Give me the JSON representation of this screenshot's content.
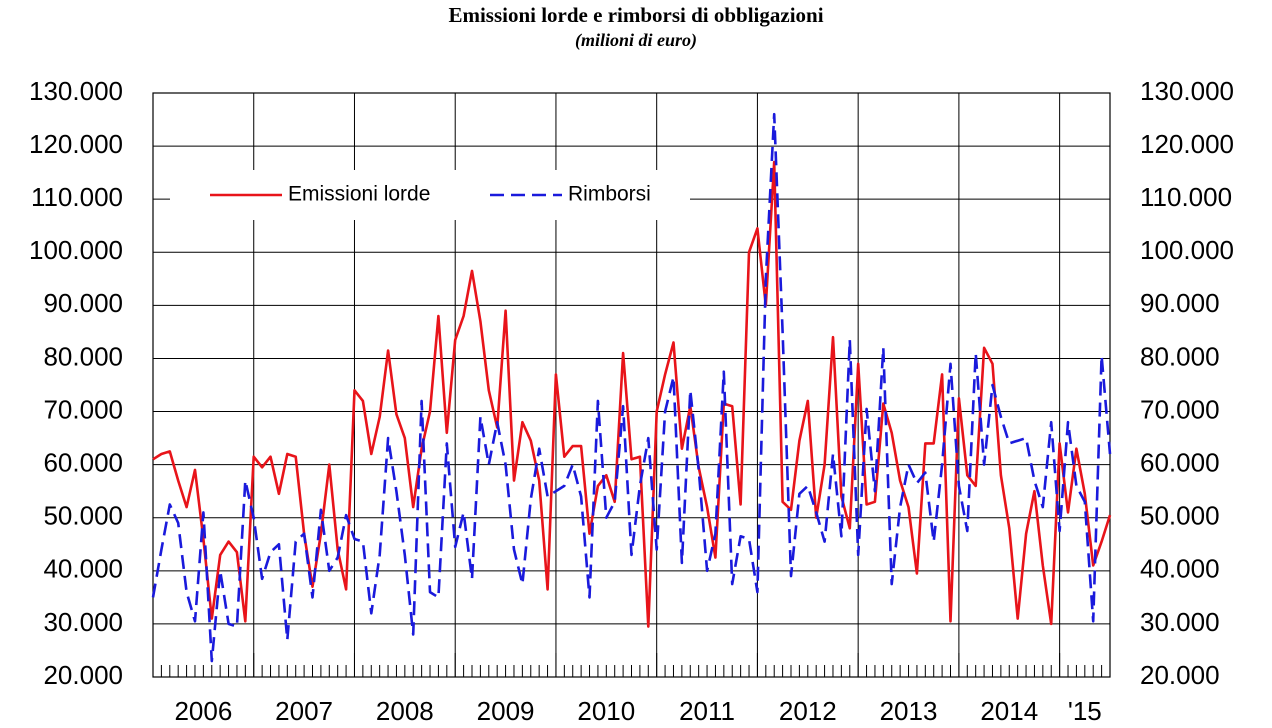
{
  "chart_data": {
    "type": "line",
    "title": "Emissioni lorde e rimborsi di obbligazioni",
    "subtitle": "(milioni di euro)",
    "categories": [
      "2006",
      null,
      null,
      null,
      null,
      null,
      null,
      null,
      null,
      null,
      null,
      null,
      "2007",
      null,
      null,
      null,
      null,
      null,
      null,
      null,
      null,
      null,
      null,
      null,
      "2008",
      null,
      null,
      null,
      null,
      null,
      null,
      null,
      null,
      null,
      null,
      null,
      "2009",
      null,
      null,
      null,
      null,
      null,
      null,
      null,
      null,
      null,
      null,
      null,
      "2010",
      null,
      null,
      null,
      null,
      null,
      null,
      null,
      null,
      null,
      null,
      null,
      "2011",
      null,
      null,
      null,
      null,
      null,
      null,
      null,
      null,
      null,
      null,
      null,
      "2012",
      null,
      null,
      null,
      null,
      null,
      null,
      null,
      null,
      null,
      null,
      null,
      "2013",
      null,
      null,
      null,
      null,
      null,
      null,
      null,
      null,
      null,
      null,
      null,
      "2014",
      null,
      null,
      null,
      null,
      null,
      null,
      null,
      null,
      null,
      null,
      null,
      "'15",
      null,
      null,
      null,
      null,
      null,
      null
    ],
    "series": [
      {
        "name": "Emissioni lorde",
        "color": "#e8141a",
        "dash": false,
        "values": [
          61000,
          62000,
          62500,
          57000,
          52000,
          59000,
          46000,
          31000,
          43000,
          45500,
          43500,
          30500,
          61500,
          59500,
          61500,
          54500,
          62000,
          61500,
          47000,
          37000,
          47000,
          60000,
          44000,
          36500,
          74000,
          72000,
          62000,
          69000,
          81500,
          69500,
          65000,
          52000,
          63000,
          70000,
          88000,
          66000,
          83500,
          88000,
          96500,
          87000,
          74000,
          67000,
          89000,
          57000,
          68000,
          64500,
          57000,
          36500,
          77000,
          61500,
          63500,
          63500,
          47000,
          56000,
          58000,
          53000,
          81000,
          61000,
          61500,
          29500,
          70000,
          77000,
          83000,
          63000,
          71000,
          59500,
          52000,
          42500,
          71500,
          71000,
          52500,
          100000,
          104500,
          90000,
          117000,
          53000,
          51500,
          64500,
          72000,
          50000,
          60000,
          84000,
          54000,
          48000,
          79000,
          52500,
          53000,
          71500,
          66000,
          57000,
          52000,
          39500,
          64000,
          64000,
          77000,
          30500,
          72500,
          58000,
          56000,
          82000,
          79000,
          58000,
          48000,
          31000,
          47000,
          55000,
          41000,
          30000,
          64000,
          51000,
          63000,
          54500,
          41000,
          45500,
          50500
        ]
      },
      {
        "name": "Rimborsi",
        "color": "#1a1adc",
        "dash": true,
        "values": [
          35000,
          44000,
          52500,
          49000,
          36000,
          30500,
          51000,
          23000,
          40000,
          30000,
          29500,
          57000,
          50000,
          38500,
          43500,
          45000,
          27000,
          45500,
          47000,
          35000,
          51500,
          40000,
          42500,
          50500,
          46000,
          45500,
          32000,
          43000,
          65000,
          55000,
          43000,
          28000,
          72000,
          36000,
          35000,
          64000,
          44500,
          51000,
          38500,
          69000,
          60000,
          68000,
          60000,
          44000,
          37500,
          53500,
          63000,
          54000,
          55000,
          56000,
          60000,
          54000,
          35000,
          72000,
          50000,
          53000,
          71000,
          43000,
          56000,
          65000,
          44000,
          70000,
          76500,
          41500,
          74000,
          59000,
          40000,
          47000,
          77500,
          37500,
          46500,
          46000,
          36000,
          95000,
          126000,
          85000,
          39000,
          54500,
          56000,
          51000,
          45500,
          62000,
          46500,
          83500,
          43000,
          70500,
          55000,
          82000,
          37500,
          52000,
          60000,
          56500,
          58500,
          45500,
          60000,
          79000,
          56000,
          47500,
          81000,
          60000,
          75000,
          69000,
          64000,
          64500,
          65000,
          57000,
          52000,
          68000,
          47500,
          68000,
          56000,
          53000,
          30500,
          80500,
          62000
        ]
      }
    ],
    "ylim": [
      20000,
      130000
    ],
    "yticks": [
      {
        "value": 20000,
        "label": "20.000"
      },
      {
        "value": 30000,
        "label": "30.000"
      },
      {
        "value": 40000,
        "label": "40.000"
      },
      {
        "value": 50000,
        "label": "50.000"
      },
      {
        "value": 60000,
        "label": "60.000"
      },
      {
        "value": 70000,
        "label": "70.000"
      },
      {
        "value": 80000,
        "label": "80.000"
      },
      {
        "value": 90000,
        "label": "90.000"
      },
      {
        "value": 100000,
        "label": "100.000"
      },
      {
        "value": 110000,
        "label": "110.000"
      },
      {
        "value": 120000,
        "label": "120.000"
      },
      {
        "value": 130000,
        "label": "130.000"
      }
    ],
    "y2lim": [
      20000,
      130000
    ],
    "y2ticks": [
      {
        "value": 20000,
        "label": "20.000"
      },
      {
        "value": 30000,
        "label": "30.000"
      },
      {
        "value": 40000,
        "label": "40.000"
      },
      {
        "value": 50000,
        "label": "50.000"
      },
      {
        "value": 60000,
        "label": "60.000"
      },
      {
        "value": 70000,
        "label": "70.000"
      },
      {
        "value": 80000,
        "label": "80.000"
      },
      {
        "value": 90000,
        "label": "90.000"
      },
      {
        "value": 100000,
        "label": "100.000"
      },
      {
        "value": 110000,
        "label": "110.000"
      },
      {
        "value": 120000,
        "label": "120.000"
      },
      {
        "value": 130000,
        "label": "130.000"
      }
    ],
    "grid": true,
    "legend": "upper left"
  }
}
